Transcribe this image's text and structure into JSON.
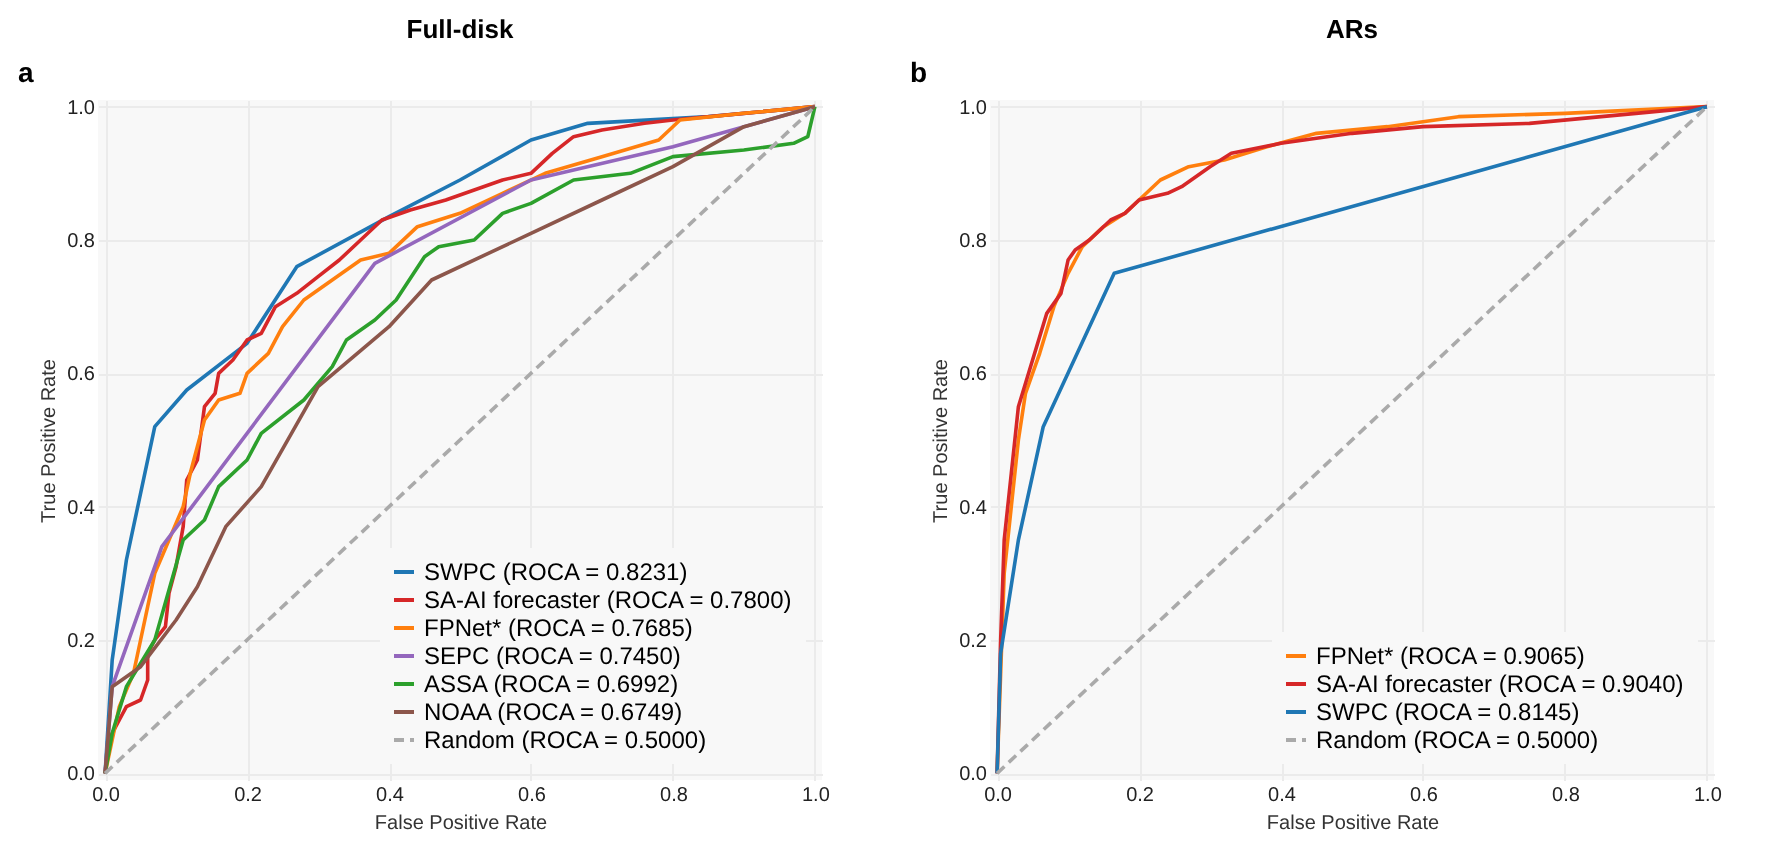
{
  "chart_data": [
    {
      "type": "line",
      "title": "Full-disk",
      "annotations": [
        "a"
      ],
      "xlabel": "False Positive Rate",
      "ylabel": "True Positive Rate",
      "xlim": [
        -0.01,
        1.01
      ],
      "ylim": [
        -0.01,
        1.01
      ],
      "xticks": [
        {
          "value": 0,
          "label": "0.0"
        },
        {
          "value": 0.2,
          "label": "0.2"
        },
        {
          "value": 0.4,
          "label": "0.4"
        },
        {
          "value": 0.6,
          "label": "0.6"
        },
        {
          "value": 0.8,
          "label": "0.8"
        },
        {
          "value": 1,
          "label": "1.0"
        }
      ],
      "yticks": [
        {
          "value": 0,
          "label": "0.0"
        },
        {
          "value": 0.2,
          "label": "0.2"
        },
        {
          "value": 0.4,
          "label": "0.4"
        },
        {
          "value": 0.6,
          "label": "0.6"
        },
        {
          "value": 0.8,
          "label": "0.8"
        },
        {
          "value": 1,
          "label": "1.0"
        }
      ],
      "grid": true,
      "legend": "bottom right",
      "marker": "none",
      "series": [
        {
          "name": "SWPC (ROCA = 0.8231)",
          "color": "#1f77b4",
          "x": [
            0,
            0.01,
            0.03,
            0.07,
            0.115,
            0.2,
            0.27,
            0.4,
            0.5,
            0.6,
            0.68,
            0.85,
            1
          ],
          "values": [
            0,
            0.17,
            0.32,
            0.52,
            0.575,
            0.645,
            0.76,
            0.835,
            0.89,
            0.95,
            0.975,
            0.985,
            1
          ]
        },
        {
          "name": "SA-AI forecaster (ROCA = 0.7800)",
          "color": "#d62728",
          "x": [
            0,
            0.005,
            0.02,
            0.03,
            0.05,
            0.06,
            0.06,
            0.07,
            0.085,
            0.09,
            0.1,
            0.11,
            0.115,
            0.13,
            0.14,
            0.155,
            0.16,
            0.18,
            0.2,
            0.22,
            0.24,
            0.27,
            0.3,
            0.33,
            0.36,
            0.39,
            0.43,
            0.48,
            0.52,
            0.56,
            0.6,
            0.63,
            0.66,
            0.7,
            0.76,
            0.8,
            0.9,
            1
          ],
          "values": [
            0,
            0.05,
            0.08,
            0.1,
            0.11,
            0.14,
            0.18,
            0.2,
            0.22,
            0.27,
            0.31,
            0.37,
            0.44,
            0.47,
            0.55,
            0.57,
            0.6,
            0.62,
            0.65,
            0.66,
            0.7,
            0.72,
            0.745,
            0.77,
            0.8,
            0.83,
            0.845,
            0.86,
            0.875,
            0.89,
            0.9,
            0.93,
            0.955,
            0.965,
            0.975,
            0.98,
            0.99,
            1
          ]
        },
        {
          "name": "FPNet* (ROCA = 0.7685)",
          "color": "#ff7f0e",
          "x": [
            0,
            0.01,
            0.02,
            0.04,
            0.05,
            0.06,
            0.07,
            0.09,
            0.11,
            0.12,
            0.14,
            0.16,
            0.19,
            0.2,
            0.23,
            0.25,
            0.28,
            0.32,
            0.36,
            0.4,
            0.44,
            0.5,
            0.56,
            0.62,
            0.7,
            0.78,
            0.81,
            0.9,
            1
          ],
          "values": [
            0,
            0.05,
            0.1,
            0.15,
            0.2,
            0.25,
            0.3,
            0.35,
            0.4,
            0.45,
            0.53,
            0.56,
            0.57,
            0.6,
            0.63,
            0.67,
            0.71,
            0.74,
            0.77,
            0.78,
            0.82,
            0.84,
            0.87,
            0.9,
            0.925,
            0.95,
            0.98,
            0.99,
            1
          ]
        },
        {
          "name": "SEPC (ROCA = 0.7450)",
          "color": "#9467bd",
          "x": [
            0,
            0.01,
            0.08,
            0.38,
            0.6,
            0.8,
            1
          ],
          "values": [
            0,
            0.13,
            0.34,
            0.765,
            0.89,
            0.94,
            1
          ]
        },
        {
          "name": "ASSA (ROCA = 0.6992)",
          "color": "#2ca02c",
          "x": [
            0,
            0.01,
            0.03,
            0.07,
            0.11,
            0.14,
            0.16,
            0.2,
            0.22,
            0.28,
            0.32,
            0.34,
            0.38,
            0.41,
            0.45,
            0.47,
            0.52,
            0.56,
            0.6,
            0.66,
            0.74,
            0.8,
            0.9,
            0.97,
            0.99,
            1
          ],
          "values": [
            0,
            0.06,
            0.13,
            0.2,
            0.35,
            0.38,
            0.43,
            0.47,
            0.51,
            0.56,
            0.61,
            0.65,
            0.68,
            0.71,
            0.775,
            0.79,
            0.8,
            0.84,
            0.855,
            0.89,
            0.9,
            0.925,
            0.935,
            0.945,
            0.955,
            1
          ]
        },
        {
          "name": "NOAA (ROCA = 0.6749)",
          "color": "#8c564b",
          "x": [
            0,
            0.01,
            0.05,
            0.1,
            0.13,
            0.17,
            0.22,
            0.3,
            0.4,
            0.46,
            0.6,
            0.7,
            0.8,
            0.9,
            1
          ],
          "values": [
            0,
            0.13,
            0.16,
            0.23,
            0.28,
            0.37,
            0.43,
            0.58,
            0.67,
            0.74,
            0.81,
            0.86,
            0.91,
            0.97,
            1
          ]
        },
        {
          "name": "Random (ROCA = 0.5000)",
          "color": "#aaaaaa",
          "line_style": "dashed",
          "x": [
            0,
            1
          ],
          "values": [
            0,
            1
          ]
        }
      ]
    },
    {
      "type": "line",
      "title": "ARs",
      "annotations": [
        "b"
      ],
      "xlabel": "False Positive Rate",
      "ylabel": "True Positive Rate",
      "xlim": [
        -0.01,
        1.01
      ],
      "ylim": [
        -0.01,
        1.01
      ],
      "xticks": [
        {
          "value": 0,
          "label": "0.0"
        },
        {
          "value": 0.2,
          "label": "0.2"
        },
        {
          "value": 0.4,
          "label": "0.4"
        },
        {
          "value": 0.6,
          "label": "0.6"
        },
        {
          "value": 0.8,
          "label": "0.8"
        },
        {
          "value": 1,
          "label": "1.0"
        }
      ],
      "yticks": [
        {
          "value": 0,
          "label": "0.0"
        },
        {
          "value": 0.2,
          "label": "0.2"
        },
        {
          "value": 0.4,
          "label": "0.4"
        },
        {
          "value": 0.6,
          "label": "0.6"
        },
        {
          "value": 0.8,
          "label": "0.8"
        },
        {
          "value": 1,
          "label": "1.0"
        }
      ],
      "grid": true,
      "legend": "bottom right",
      "marker": "none",
      "series": [
        {
          "name": "FPNet* (ROCA = 0.9065)",
          "color": "#ff7f0e",
          "x": [
            0,
            0.005,
            0.01,
            0.02,
            0.03,
            0.04,
            0.06,
            0.08,
            0.1,
            0.12,
            0.15,
            0.18,
            0.2,
            0.23,
            0.27,
            0.32,
            0.38,
            0.45,
            0.55,
            0.65,
            0.8,
            1
          ],
          "values": [
            0,
            0.15,
            0.3,
            0.4,
            0.5,
            0.57,
            0.63,
            0.7,
            0.75,
            0.79,
            0.82,
            0.84,
            0.86,
            0.89,
            0.91,
            0.92,
            0.94,
            0.96,
            0.97,
            0.985,
            0.99,
            1
          ]
        },
        {
          "name": "SA-AI forecaster (ROCA = 0.9040)",
          "color": "#d62728",
          "x": [
            0,
            0.005,
            0.01,
            0.02,
            0.03,
            0.05,
            0.07,
            0.09,
            0.1,
            0.11,
            0.13,
            0.16,
            0.18,
            0.2,
            0.24,
            0.26,
            0.3,
            0.33,
            0.4,
            0.5,
            0.6,
            0.75,
            0.9,
            1
          ],
          "values": [
            0,
            0.2,
            0.35,
            0.45,
            0.55,
            0.62,
            0.69,
            0.72,
            0.77,
            0.785,
            0.8,
            0.83,
            0.84,
            0.86,
            0.87,
            0.88,
            0.91,
            0.93,
            0.945,
            0.96,
            0.97,
            0.975,
            0.99,
            1
          ]
        },
        {
          "name": "SWPC (ROCA = 0.8145)",
          "color": "#1f77b4",
          "x": [
            0,
            0.005,
            0.03,
            0.065,
            0.165,
            1
          ],
          "values": [
            0,
            0.18,
            0.35,
            0.52,
            0.75,
            1
          ]
        },
        {
          "name": "Random (ROCA = 0.5000)",
          "color": "#aaaaaa",
          "line_style": "dashed",
          "x": [
            0,
            1
          ],
          "values": [
            0,
            1
          ]
        }
      ]
    }
  ]
}
